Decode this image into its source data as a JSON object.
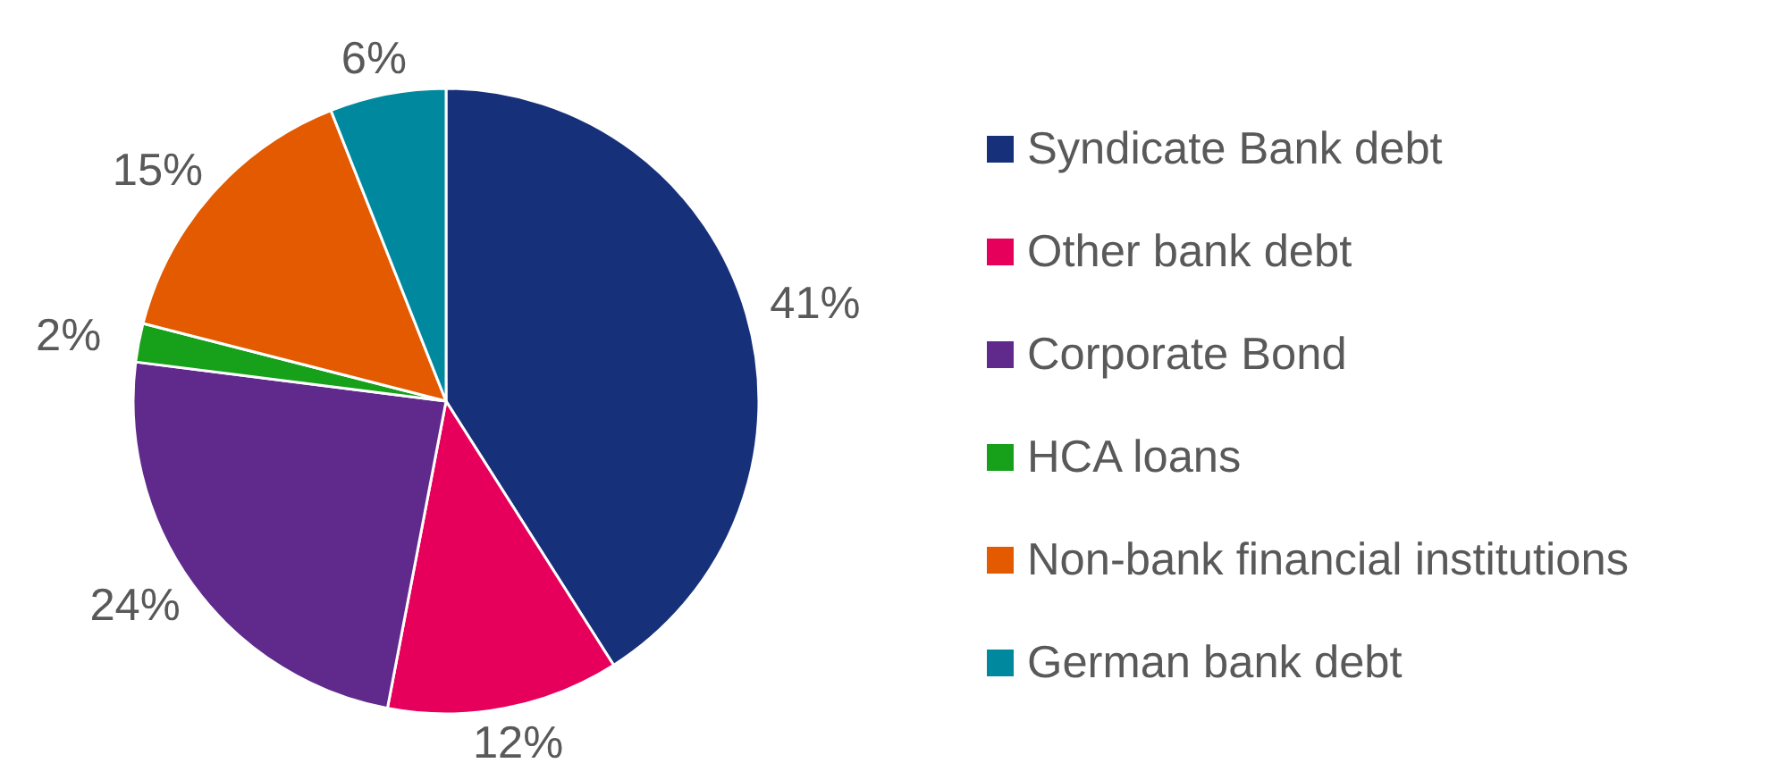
{
  "chart_data": {
    "type": "pie",
    "categories": [
      "Syndicate Bank debt",
      "Other bank debt",
      "Corporate Bond",
      "HCA loans",
      "Non-bank financial institutions",
      "German bank debt"
    ],
    "values": [
      41,
      12,
      24,
      2,
      15,
      6
    ],
    "colors": [
      "#17307a",
      "#e6005c",
      "#5f2a8c",
      "#17a01a",
      "#e35a00",
      "#00899e"
    ],
    "value_labels": [
      "41%",
      "12%",
      "24%",
      "2%",
      "15%",
      "6%"
    ],
    "legend": "right"
  }
}
